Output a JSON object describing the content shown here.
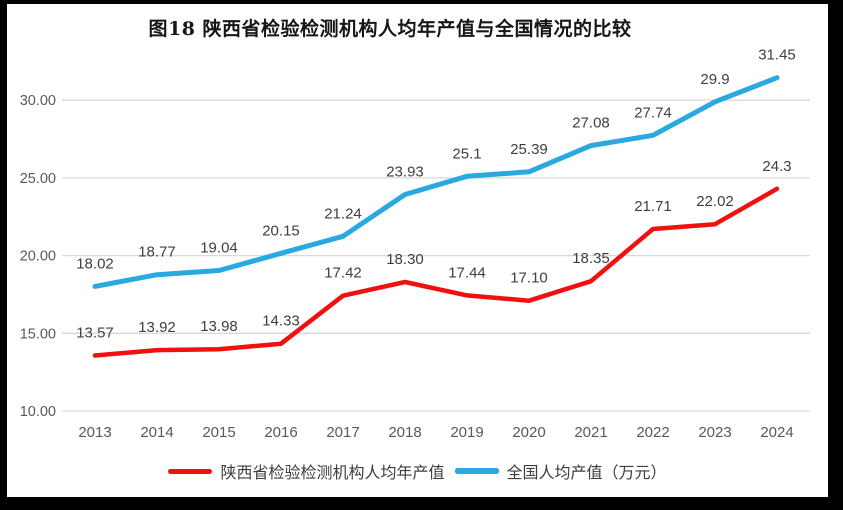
{
  "chart_data": {
    "type": "line",
    "title": "图18 陕西省检验检测机构人均年产值与全国情况的比较",
    "categories": [
      "2013",
      "2014",
      "2015",
      "2016",
      "2017",
      "2018",
      "2019",
      "2020",
      "2021",
      "2022",
      "2023",
      "2024"
    ],
    "series": [
      {
        "name": "陕西省检验检测机构人均年产值",
        "color": "#F01010",
        "line_width": 4.5,
        "values": [
          13.57,
          13.92,
          13.98,
          14.33,
          17.42,
          18.3,
          17.44,
          17.1,
          18.35,
          21.71,
          22.02,
          24.3
        ],
        "labels": [
          "13.57",
          "13.92",
          "13.98",
          "14.33",
          "17.42",
          "18.30",
          "17.44",
          "17.10",
          "18.35",
          "21.71",
          "22.02",
          "24.3"
        ]
      },
      {
        "name": "全国人均产值（万元）",
        "color": "#29A9E0",
        "line_width": 5,
        "values": [
          18.02,
          18.77,
          19.04,
          20.15,
          21.24,
          23.93,
          25.1,
          25.39,
          27.08,
          27.74,
          29.9,
          31.45
        ],
        "labels": [
          "18.02",
          "18.77",
          "19.04",
          "20.15",
          "21.24",
          "23.93",
          "25.1",
          "25.39",
          "27.08",
          "27.74",
          "29.9",
          "31.45"
        ]
      }
    ],
    "y_axis": {
      "min": 10,
      "max": 30,
      "step": 5,
      "tick_labels": [
        "10.00",
        "15.00",
        "20.00",
        "25.00",
        "30.00"
      ]
    },
    "x_axis": {
      "tick_labels": [
        "2013",
        "2014",
        "2015",
        "2016",
        "2017",
        "2018",
        "2019",
        "2020",
        "2021",
        "2022",
        "2023",
        "2024"
      ]
    },
    "ylim": [
      10,
      32.5
    ],
    "grid": true,
    "legend_position": "bottom",
    "colors": {
      "gridline": "#D9D9D9",
      "tick_text": "#595959",
      "data_label_text": "#3F3F3F",
      "background": "#FFFFFF",
      "border": "#000000"
    }
  }
}
